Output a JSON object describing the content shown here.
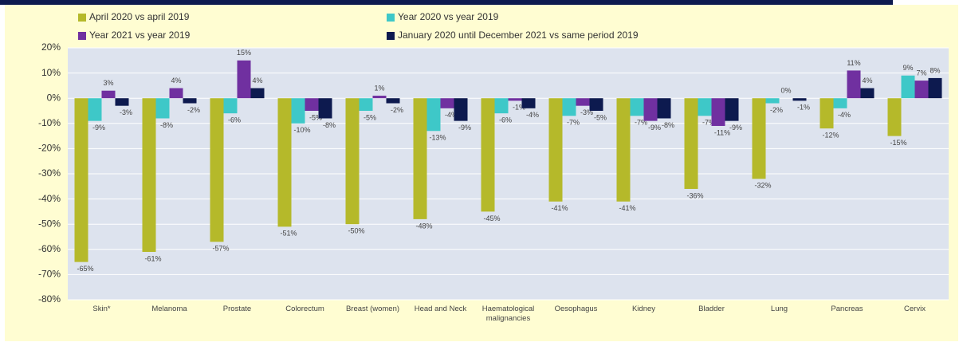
{
  "chart_data": {
    "type": "bar",
    "categories": [
      "Skin*",
      "Melanoma",
      "Prostate",
      "Colorectum",
      "Breast (women)",
      "Head and Neck",
      "Haematological malignancies",
      "Oesophagus",
      "Kidney",
      "Bladder",
      "Lung",
      "Pancreas",
      "Cervix"
    ],
    "series": [
      {
        "name": "April 2020 vs april 2019",
        "color": "#b5b92a",
        "values": [
          -65,
          -61,
          -57,
          -51,
          -50,
          -48,
          -45,
          -41,
          -41,
          -36,
          -32,
          -12,
          -15
        ],
        "value_labels": [
          "-65%",
          "-61%",
          "-57%",
          "-51%",
          "-50%",
          "-48%",
          "-45%",
          "-41%",
          "-41%",
          "-36%",
          "-32%",
          "-12%",
          "-15%"
        ]
      },
      {
        "name": "Year 2020 vs year 2019",
        "color": "#3ec8c8",
        "values": [
          -9,
          -8,
          -6,
          -10,
          -5,
          -13,
          -6,
          -7,
          -7,
          -7,
          -2,
          -4,
          9
        ],
        "value_labels": [
          "-9%",
          "-8%",
          "-6%",
          "-10%",
          "-5%",
          "-13%",
          "-6%",
          "-7%",
          "-7%",
          "-7%",
          "-2%",
          "-4%",
          "9%"
        ]
      },
      {
        "name": "Year 2021 vs year 2019",
        "color": "#7030a0",
        "values": [
          3,
          4,
          15,
          -5,
          1,
          -4,
          -1,
          -3,
          -9,
          -11,
          0,
          11,
          7
        ],
        "value_labels": [
          "3%",
          "4%",
          "15%",
          "-5%",
          "1%",
          "-4%",
          "-1%",
          "-3%",
          "-9%",
          "-11%",
          "0%",
          "11%",
          "7%"
        ]
      },
      {
        "name": "January 2020 until December 2021 vs same period 2019",
        "color": "#0d1a4f",
        "values": [
          -3,
          -2,
          4,
          -8,
          -2,
          -9,
          -4,
          -5,
          -8,
          -9,
          -1,
          4,
          8
        ],
        "value_labels": [
          "-3%",
          "-2%",
          "4%",
          "-8%",
          "-2%",
          "-9%",
          "-4%",
          "-5%",
          "-8%",
          "-9%",
          "-1%",
          "4%",
          "8%"
        ]
      }
    ],
    "ylim": [
      -80,
      20
    ],
    "yticks": [
      {
        "value": -80,
        "label": "-80%"
      },
      {
        "value": -70,
        "label": "-70%"
      },
      {
        "value": -60,
        "label": "-60%"
      },
      {
        "value": -50,
        "label": "-50%"
      },
      {
        "value": -40,
        "label": "-40%"
      },
      {
        "value": -30,
        "label": "-30%"
      },
      {
        "value": -20,
        "label": "-20%"
      },
      {
        "value": -10,
        "label": "-10%"
      },
      {
        "value": 0,
        "label": "0%"
      },
      {
        "value": 10,
        "label": "10%"
      },
      {
        "value": 20,
        "label": "20%"
      }
    ],
    "grid": true
  }
}
